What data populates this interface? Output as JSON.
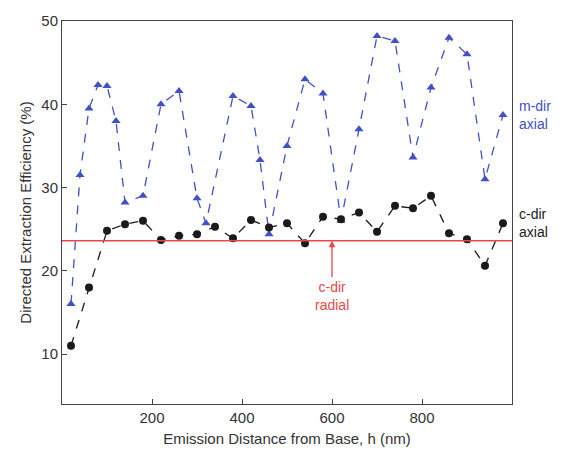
{
  "chart_data": {
    "type": "line",
    "x_label": "Emission Distance from Base, h (nm)",
    "y_label": "Directed Extraction Efficiency (%)",
    "xlim": [
      0,
      1000
    ],
    "xticks": [
      200,
      400,
      600,
      800
    ],
    "ylim": [
      4,
      50
    ],
    "yticks": [
      10,
      20,
      30,
      40,
      50
    ],
    "grid": false,
    "series": [
      {
        "name": "m-dir axial",
        "color": "#3f51c8",
        "marker": "triangle",
        "line_style": "dashed",
        "x": [
          20,
          40,
          60,
          80,
          100,
          120,
          140,
          180,
          220,
          260,
          300,
          320,
          380,
          420,
          440,
          460,
          500,
          540,
          580,
          620,
          660,
          700,
          740,
          780,
          820,
          860,
          900,
          940,
          980
        ],
        "values": [
          16,
          31.5,
          39.5,
          42.3,
          42.2,
          38,
          28.2,
          29,
          40,
          41.6,
          28.7,
          25.7,
          41,
          39.8,
          33.3,
          24.4,
          35,
          43,
          41.3,
          26,
          37,
          48.2,
          47.6,
          33.6,
          42,
          48,
          46,
          31,
          38.7
        ]
      },
      {
        "name": "c-dir axial",
        "color": "#1a1a1a",
        "marker": "circle",
        "line_style": "dashed",
        "x": [
          20,
          60,
          100,
          140,
          180,
          220,
          260,
          300,
          340,
          380,
          420,
          460,
          500,
          540,
          580,
          620,
          660,
          700,
          740,
          780,
          820,
          860,
          900,
          940,
          980
        ],
        "values": [
          11,
          18,
          24.8,
          25.6,
          26,
          23.7,
          24.2,
          24.4,
          25.3,
          23.9,
          26.1,
          25.2,
          25.7,
          23.3,
          26.5,
          26.2,
          27,
          24.7,
          27.8,
          27.5,
          29,
          24.5,
          23.8,
          20.6,
          25.7
        ]
      }
    ],
    "reference_lines": [
      {
        "name": "c-dir radial",
        "value": 23.6,
        "color": "#e8474a",
        "line_style": "solid"
      }
    ]
  }
}
